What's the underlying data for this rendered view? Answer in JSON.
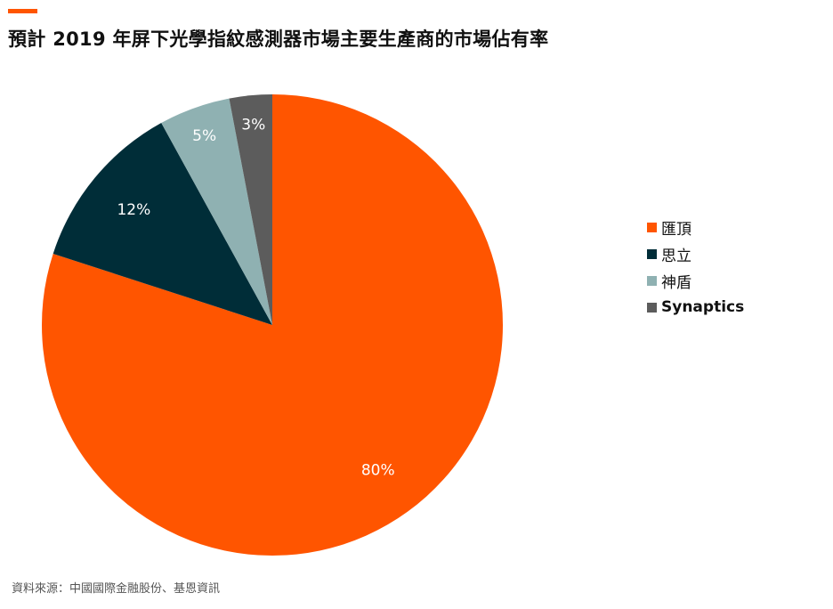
{
  "title": "預計 2019 年屏下光學指紋感測器市場主要生產商的市場佔有率",
  "source": "資料來源：中國國際金融股份、基恩資訊",
  "colors": {
    "accent": "#ff5500",
    "huiding": "#ff5500",
    "sili": "#002d38",
    "shendun": "#8fb1b2",
    "synaptics": "#5c5c5c"
  },
  "chart_data": {
    "type": "pie",
    "start": "12 o'clock",
    "direction": "clockwise",
    "legend_position": "right",
    "slices": [
      {
        "label": "匯頂",
        "value": 80,
        "display": "80%",
        "color": "#ff5500",
        "label_color": "#ffffff"
      },
      {
        "label": "思立",
        "value": 12,
        "display": "12%",
        "color": "#002d38",
        "label_color": "#ffffff"
      },
      {
        "label": "神盾",
        "value": 5,
        "display": "5%",
        "color": "#8fb1b2",
        "label_color": "#ffffff"
      },
      {
        "label": "Synaptics",
        "value": 3,
        "display": "3%",
        "color": "#5c5c5c",
        "label_color": "#ffffff"
      }
    ]
  }
}
